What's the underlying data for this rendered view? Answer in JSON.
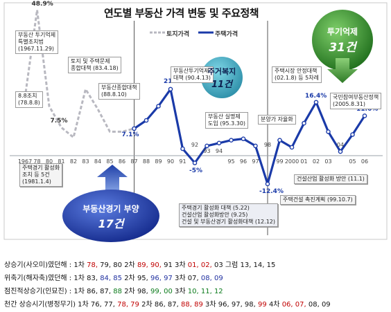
{
  "chart_data": {
    "type": "line",
    "title": "연도별 부동산 가격 변동 및 주요정책",
    "xlabel": "",
    "ylabel": "",
    "x_ticks": [
      "1967",
      "78",
      "80",
      "81",
      "82",
      "83",
      "84",
      "85",
      "86",
      "87",
      "88",
      "89",
      "90",
      "91",
      "92",
      "93",
      "94",
      "95",
      "96",
      "97",
      "98",
      "99",
      "2000",
      "01",
      "02",
      "03",
      "04",
      "05",
      "06"
    ],
    "series": [
      {
        "name": "토지가격",
        "style": "dashed",
        "color": "#b8b8c0",
        "x": [
          "1967",
          "78",
          "80",
          "81",
          "82",
          "83",
          "84",
          "85",
          "86",
          "87"
        ],
        "values": [
          18,
          48.9,
          15,
          7.5,
          4,
          21,
          14,
          6,
          6,
          7.1
        ]
      },
      {
        "name": "주택가격",
        "style": "solid",
        "color": "#1a3aa8",
        "x": [
          "87",
          "88",
          "89",
          "90",
          "91",
          "92",
          "93",
          "94",
          "95",
          "96",
          "97",
          "98",
          "99",
          "2000",
          "01",
          "02",
          "03",
          "04",
          "05",
          "06"
        ],
        "values": [
          7.1,
          10,
          15,
          21,
          0,
          -5,
          1,
          2,
          3,
          3.5,
          1,
          -12.4,
          3,
          0.5,
          9,
          16.4,
          6,
          -1,
          5,
          11.6
        ]
      }
    ],
    "data_labels": [
      {
        "x": "78",
        "text": "48.9%",
        "color": "#333"
      },
      {
        "x": "81",
        "text": "7.5%",
        "color": "#333"
      },
      {
        "x": "87",
        "text": "7.1%",
        "color": "#1a3aa8"
      },
      {
        "x": "90",
        "text": "21%",
        "color": "#1a3aa8"
      },
      {
        "x": "92",
        "text": "-5%",
        "color": "#1a3aa8"
      },
      {
        "x": "98",
        "text": "-12.4%",
        "color": "#1a3aa8"
      },
      {
        "x": "02",
        "text": "16.4%",
        "color": "#1a3aa8"
      },
      {
        "x": "06",
        "text": "11.6%",
        "color": "#1a3aa8"
      }
    ],
    "annotations": [
      {
        "x": "78",
        "lines": [
          "부동산 투기억제",
          "특별조치법",
          "(1967.11.29)"
        ]
      },
      {
        "x": "78",
        "lines": [
          "8.8조치",
          "(78.8.8)"
        ]
      },
      {
        "x": "83",
        "lines": [
          "토지 및 주택문제",
          "종합대책 (83.4.18)"
        ]
      },
      {
        "x": "88",
        "lines": [
          "부동산종합대책",
          "(88.8.10)"
        ]
      },
      {
        "x": "90",
        "lines": [
          "부동산투기억제",
          "대책 (90.4.13)"
        ]
      },
      {
        "x": "95",
        "lines": [
          "부동산 실명제",
          "도입 (95.3.30)"
        ]
      },
      {
        "x": "99",
        "lines": [
          "분양가 자율화"
        ]
      },
      {
        "x": "2000",
        "lines": [
          "주택시장 안정대책",
          "(02.1.8) 등 5차례"
        ]
      },
      {
        "x": "05",
        "lines": [
          "국민참여부동산정책",
          "(2005.8.31)"
        ]
      },
      {
        "x": "81",
        "lines": [
          "주택경기 활성화",
          "조치 등 5건",
          "(1981.1.4)"
        ]
      },
      {
        "x": "98",
        "lines": [
          "주택경기 활성화 대책 (5.22)",
          "건설산업 활성화방안 (9.25)",
          "건설 및 부동산경기 활성화대책 (12.12)"
        ]
      },
      {
        "x": "2000",
        "lines": [
          "주택건설 촉진계획 (99.10.7)"
        ]
      },
      {
        "x": "2000",
        "lines": [
          "건설산업 활성화 방안 (11.1)"
        ]
      }
    ],
    "callouts": [
      {
        "title": "투기억제",
        "count": "31건"
      },
      {
        "title": "주거복지",
        "count": "11건"
      },
      {
        "title": "부동산경기 부양",
        "count": "17건"
      }
    ],
    "vertical_markers": [
      "87",
      "98"
    ]
  },
  "notes": [
    {
      "label": "상승기(사오미)였던해 : ",
      "groups": [
        {
          "prefix": "1차 ",
          "items": [
            {
              "t": "78,",
              "c": "r"
            },
            {
              "t": " 79, 80",
              "c": ""
            }
          ]
        },
        {
          "prefix": "2차 ",
          "items": [
            {
              "t": "89, 90,",
              "c": "r"
            },
            {
              "t": " 91",
              "c": ""
            }
          ]
        },
        {
          "prefix": "3차 ",
          "items": [
            {
              "t": "01, 02,",
              "c": "r"
            },
            {
              "t": " 03",
              "c": ""
            }
          ]
        },
        {
          "prefix": "그럼 ",
          "items": [
            {
              "t": "13, 14, 15",
              "c": ""
            }
          ]
        }
      ]
    },
    {
      "label": "위축기(해자축)였던해 : ",
      "groups": [
        {
          "prefix": "1차 ",
          "items": [
            {
              "t": "83, ",
              "c": ""
            },
            {
              "t": "84, 85",
              "c": "b"
            }
          ]
        },
        {
          "prefix": "2차 ",
          "items": [
            {
              "t": "95, ",
              "c": ""
            },
            {
              "t": "96, 97",
              "c": "b"
            }
          ]
        },
        {
          "prefix": "3차 ",
          "items": [
            {
              "t": "07, ",
              "c": ""
            },
            {
              "t": "08, 09",
              "c": "b"
            }
          ]
        }
      ]
    },
    {
      "label": "점진적상승기(인묘진) : ",
      "groups": [
        {
          "prefix": "1차 ",
          "items": [
            {
              "t": "86, 87, ",
              "c": ""
            },
            {
              "t": "88",
              "c": "g"
            }
          ]
        },
        {
          "prefix": "2차 ",
          "items": [
            {
              "t": "98, ",
              "c": ""
            },
            {
              "t": "99, 00",
              "c": "g"
            }
          ]
        },
        {
          "prefix": "3차 ",
          "items": [
            {
              "t": "10, 11, 12",
              "c": "g"
            }
          ]
        }
      ]
    },
    {
      "label": "천간 상승시기(병정무기) ",
      "groups": [
        {
          "prefix": "1차 ",
          "items": [
            {
              "t": "76, 77, ",
              "c": ""
            },
            {
              "t": "78, 79",
              "c": "r"
            }
          ]
        },
        {
          "prefix": "2차 ",
          "items": [
            {
              "t": "86, 87, ",
              "c": ""
            },
            {
              "t": "88, 89",
              "c": "r"
            }
          ]
        },
        {
          "prefix": "3차 ",
          "items": [
            {
              "t": "96, 97, 98, ",
              "c": ""
            },
            {
              "t": "99",
              "c": "r"
            }
          ]
        },
        {
          "prefix": "4차 ",
          "items": [
            {
              "t": "06, 07, ",
              "c": "r"
            },
            {
              "t": "08, 09",
              "c": ""
            }
          ]
        }
      ]
    }
  ]
}
